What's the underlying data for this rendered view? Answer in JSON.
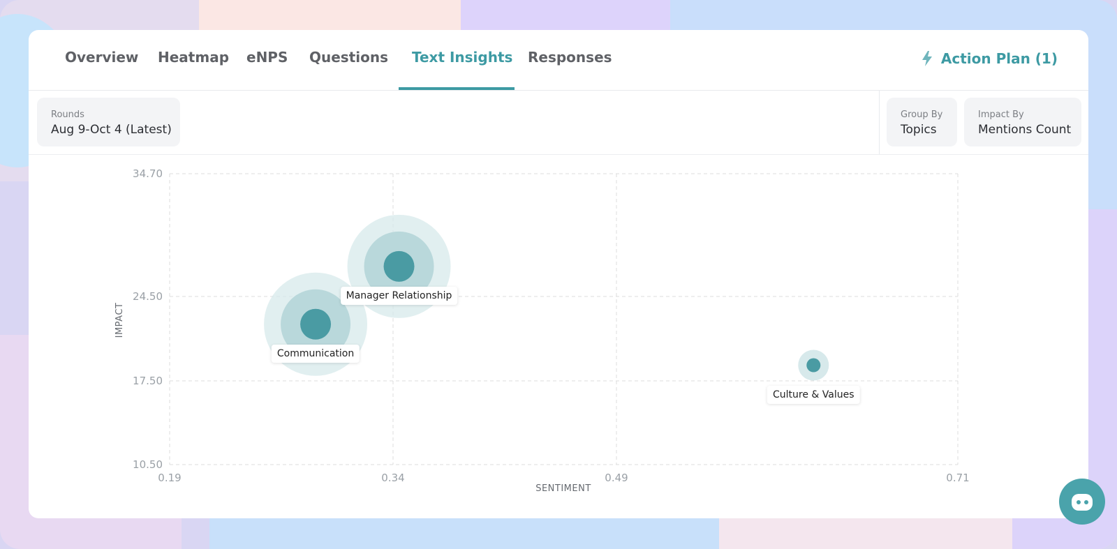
{
  "tabs": [
    {
      "label": "Overview",
      "active": false
    },
    {
      "label": "Heatmap",
      "active": false
    },
    {
      "label": "eNPS",
      "active": false
    },
    {
      "label": "Questions",
      "active": false
    },
    {
      "label": "Text Insights",
      "active": true
    },
    {
      "label": "Responses",
      "active": false
    }
  ],
  "action_plan": {
    "label": "Action Plan (1)",
    "icon": "lightning-icon"
  },
  "filters": {
    "rounds": {
      "label": "Rounds",
      "value": "Aug 9-Oct 4 (Latest)"
    },
    "group_by": {
      "label": "Group By",
      "value": "Topics"
    },
    "impact_by": {
      "label": "Impact By",
      "value": "Mentions Count"
    }
  },
  "colors": {
    "accent": "#3d9aa3",
    "bubble": "#4a9ba3",
    "bubble_halo": "#d7e9eb"
  },
  "chart_data": {
    "type": "scatter",
    "xlabel": "SENTIMENT",
    "ylabel": "IMPACT",
    "xlim": [
      0.19,
      0.71
    ],
    "ylim": [
      10.5,
      34.7
    ],
    "x_ticks": [
      "0.19",
      "0.34",
      "0.49",
      "0.71"
    ],
    "y_ticks": [
      "34.70",
      "24.50",
      "17.50",
      "10.50"
    ],
    "x_tick_values": [
      0.19,
      0.34,
      0.49,
      0.71
    ],
    "y_tick_values": [
      34.7,
      24.5,
      17.5,
      10.5
    ],
    "grid": true,
    "points": [
      {
        "label": "Manager Relationship",
        "x": 0.344,
        "y": 27.0
      },
      {
        "label": "Communication",
        "x": 0.288,
        "y": 22.2
      },
      {
        "label": "Culture & Values",
        "x": 0.617,
        "y": 18.8
      }
    ]
  }
}
